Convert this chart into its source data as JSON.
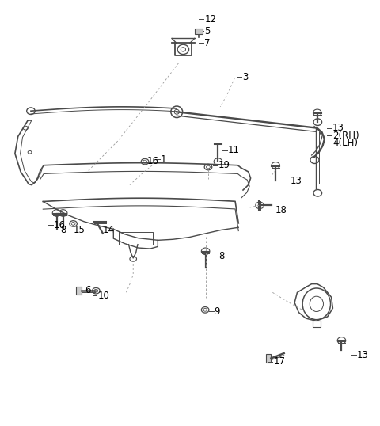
{
  "bg_color": "#ffffff",
  "line_color": "#4a4a4a",
  "text_color": "#000000",
  "figsize": [
    4.8,
    5.38
  ],
  "dpi": 100
}
